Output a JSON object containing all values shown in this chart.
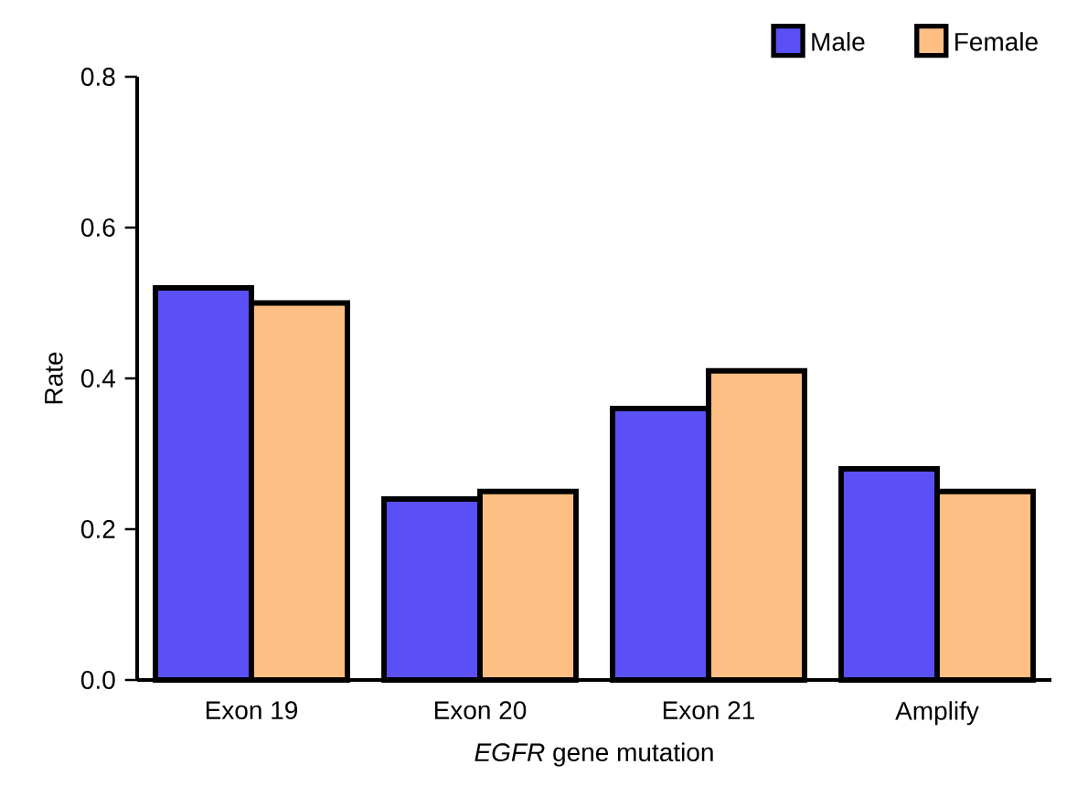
{
  "chart_data": {
    "type": "bar",
    "xlabel": "*EGFR* gene mutation",
    "ylabel": "Rate",
    "categories": [
      "Exon 19",
      "Exon 20",
      "Exon 21",
      "Amplify"
    ],
    "series": [
      {
        "name": "Male",
        "color": "#5a50f5",
        "values": [
          0.52,
          0.24,
          0.36,
          0.28
        ]
      },
      {
        "name": "Female",
        "color": "#fdbf84",
        "values": [
          0.5,
          0.25,
          0.41,
          0.25
        ]
      }
    ],
    "ylim": [
      0,
      0.8
    ],
    "yticks": [
      {
        "value": 0,
        "label": "0.0"
      },
      0.2,
      0.4,
      0.6,
      0.8
    ],
    "legend": "top right"
  }
}
